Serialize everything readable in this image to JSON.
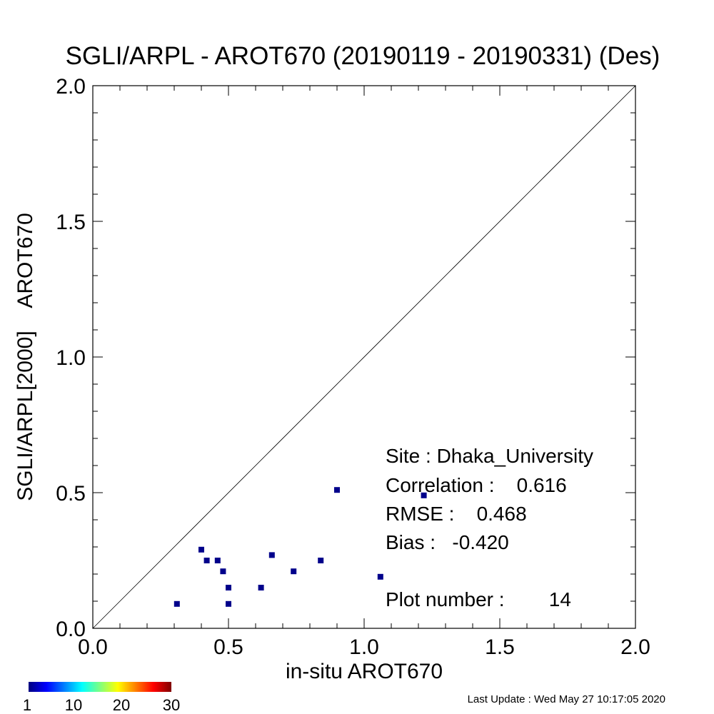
{
  "chart_data": {
    "type": "scatter",
    "title": "SGLI/ARPL - AROT670 (20190119 - 20190331) (Des)",
    "xlabel": "in-situ AROT670",
    "ylabel": "SGLI/ARPL[2000]    AROT670",
    "xlim": [
      0.0,
      2.0
    ],
    "ylim": [
      0.0,
      2.0
    ],
    "x_tick_labels": [
      "0.0",
      "0.5",
      "1.0",
      "1.5",
      "2.0"
    ],
    "y_tick_labels": [
      "0.0",
      "0.5",
      "1.0",
      "1.5",
      "2.0"
    ],
    "one_to_one_line": true,
    "point_color": "#00008b",
    "points": [
      {
        "x": 0.31,
        "y": 0.09
      },
      {
        "x": 0.4,
        "y": 0.29
      },
      {
        "x": 0.42,
        "y": 0.25
      },
      {
        "x": 0.46,
        "y": 0.25
      },
      {
        "x": 0.48,
        "y": 0.21
      },
      {
        "x": 0.5,
        "y": 0.15
      },
      {
        "x": 0.5,
        "y": 0.09
      },
      {
        "x": 0.62,
        "y": 0.15
      },
      {
        "x": 0.66,
        "y": 0.27
      },
      {
        "x": 0.74,
        "y": 0.21
      },
      {
        "x": 0.84,
        "y": 0.25
      },
      {
        "x": 0.9,
        "y": 0.51
      },
      {
        "x": 1.06,
        "y": 0.19
      },
      {
        "x": 1.22,
        "y": 0.49
      }
    ],
    "stats": {
      "site": "Site : Dhaka_University",
      "correlation": "Correlation :    0.616",
      "rmse": "RMSE :    0.468",
      "bias": "Bias :   -0.420",
      "plot_number": "Plot number :        14"
    },
    "colorbar": {
      "tick_labels": [
        "1",
        "10",
        "20",
        "30"
      ],
      "colors": [
        "#00007f",
        "#0000ff",
        "#007fff",
        "#00ffff",
        "#7fff7f",
        "#ffff00",
        "#ff7f00",
        "#ff0000",
        "#7f0000"
      ]
    }
  },
  "footer": {
    "last_update": "Last Update : Wed May 27 10:17:05 2020"
  }
}
